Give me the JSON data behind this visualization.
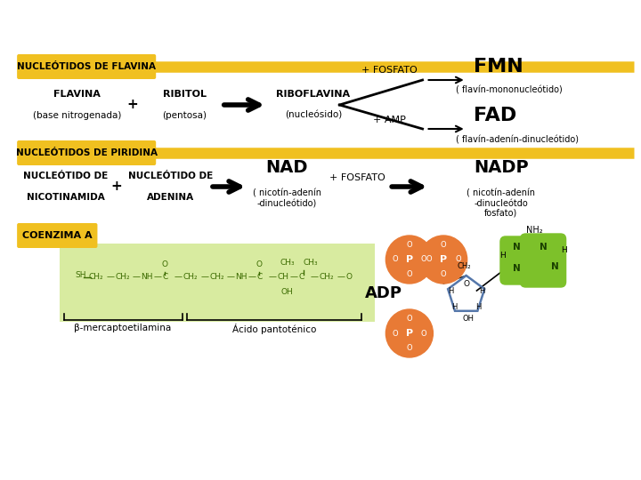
{
  "bg_color": "#ffffff",
  "gold_color": "#F0C020",
  "text_color": "#000000",
  "section1_label": "NUCLEÓTIDOS DE FLAVINA",
  "section2_label": "NUCLEÓTIDOS DE PIRIDINA",
  "section3_label": "COENZIMA A",
  "flavina_line1": "FLAVINA",
  "flavina_line2": "(base nitrogenada)",
  "ribitol_line1": "RIBITOL",
  "ribitol_line2": "(pentosa)",
  "riboflavina_line1": "RIBOFLAVINA",
  "riboflavina_line2": "(nucleósido)",
  "fosfato_label": "+ FOSFATO",
  "amp_label": "+ AMP",
  "fmn_label": "FMN",
  "fmn_sub": "( flavín-mononucleótido)",
  "fad_label": "FAD",
  "fad_sub": "( flavín-adenín-dinucleótido)",
  "nad_label": "NAD",
  "nad_sub1": "( nicotín-adenín",
  "nad_sub2": "-dinucleótido)",
  "nadp_label": "NADP",
  "nadp_sub1": "( nicotín-adenín",
  "nadp_sub2": "-dinucleótdo",
  "nadp_sub3": "fosfato)",
  "nic_line1": "NUCLEÓTIDO DE",
  "nic_line2": "NICOTINAMIDA",
  "ade_line1": "NUCLEÓTIDO DE",
  "ade_line2": "ADENINA",
  "fosfato2_label": "+ FOSFATO",
  "beta_label": "β-mercaptoetilamina",
  "acido_label": "Ácido pantoténico",
  "adp_label": "ADP",
  "orange_color": "#E87A35",
  "green_ring_color": "#7DC12A",
  "ribose_color": "#5577AA",
  "light_green": "#D8EBA0"
}
